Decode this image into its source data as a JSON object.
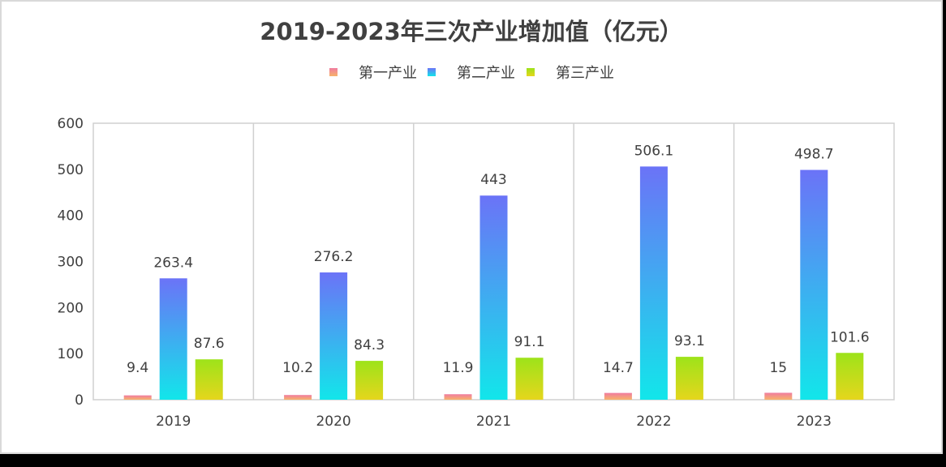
{
  "chart_data": {
    "type": "bar",
    "title": "2019-2023年三次产业增加值（亿元）",
    "categories": [
      "2019",
      "2020",
      "2021",
      "2022",
      "2023"
    ],
    "series": [
      {
        "name": "第一产业",
        "values": [
          9.4,
          10.2,
          11.9,
          14.7,
          15
        ]
      },
      {
        "name": "第二产业",
        "values": [
          263.4,
          276.2,
          443,
          506.1,
          498.7
        ]
      },
      {
        "name": "第三产业",
        "values": [
          87.6,
          84.3,
          91.1,
          93.1,
          101.6
        ]
      }
    ],
    "data_labels": [
      [
        "9.4",
        "10.2",
        "11.9",
        "14.7",
        "15"
      ],
      [
        "263.4",
        "276.2",
        "443",
        "506.1",
        "498.7"
      ],
      [
        "87.6",
        "84.3",
        "91.1",
        "93.1",
        "101.6"
      ]
    ],
    "ylim": [
      0,
      600
    ],
    "yticks": [
      "0",
      "100",
      "200",
      "300",
      "400",
      "500",
      "600"
    ],
    "legend_position": "top-center",
    "grid": "vertical category separators",
    "colors": {
      "series_1_top": "#f07ba0",
      "series_1_bottom": "#f7b36a",
      "series_2_top": "#6b73f7",
      "series_2_bottom": "#12e6ea",
      "series_3_top": "#9de31a",
      "series_3_bottom": "#e5d61c"
    }
  }
}
